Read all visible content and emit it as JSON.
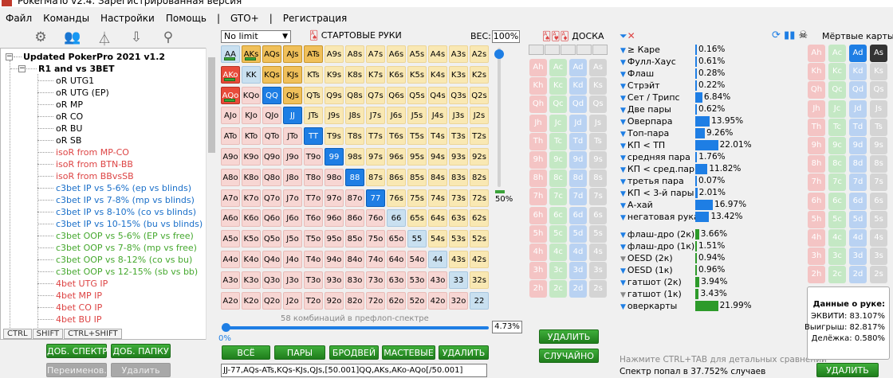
{
  "window": {
    "title": "PokerMaTo v2.4. Зарегистрированная версия"
  },
  "menu": [
    "Файл",
    "Команды",
    "Настройки",
    "Помощь",
    "|",
    "GTO+",
    "|",
    "Регистрация"
  ],
  "tree": {
    "root": "Updated PokerPro 2021 v1.2",
    "child": "R1 and vs 3BET",
    "items": [
      {
        "label": "oR UTG1",
        "color": "#000"
      },
      {
        "label": "oR UTG (EP)",
        "color": "#000"
      },
      {
        "label": "oR MP",
        "color": "#000"
      },
      {
        "label": "oR CO",
        "color": "#000"
      },
      {
        "label": "oR BU",
        "color": "#000"
      },
      {
        "label": "oR SB",
        "color": "#000"
      },
      {
        "label": "isoR from MP-CO",
        "color": "#d44"
      },
      {
        "label": "isoR from BTN-BB",
        "color": "#d44"
      },
      {
        "label": "isoR from BBvsSB",
        "color": "#d44"
      },
      {
        "label": "c3bet IP vs 5-6% (ep vs blinds)",
        "color": "#1a6fc9"
      },
      {
        "label": "c3bet IP vs 7-8% (mp vs blinds)",
        "color": "#1a6fc9"
      },
      {
        "label": "c3bet IP vs 8-10% (co vs blinds)",
        "color": "#1a6fc9"
      },
      {
        "label": "c3bet IP vs 10-15% (bu vs blinds)",
        "color": "#1a6fc9"
      },
      {
        "label": "c3bet OOP vs 5-6% (EP vs free)",
        "color": "#45a82e"
      },
      {
        "label": "c3bet OOP vs 7-8% (mp vs free)",
        "color": "#45a82e"
      },
      {
        "label": "c3bet OOP vs 8-12% (co vs bu)",
        "color": "#45a82e"
      },
      {
        "label": "c3bet OOP vs 12-15% (sb vs bb)",
        "color": "#45a82e"
      },
      {
        "label": "4bet UTG IP",
        "color": "#d44"
      },
      {
        "label": "4bet MP IP",
        "color": "#d44"
      },
      {
        "label": "4bet CO IP",
        "color": "#d44"
      },
      {
        "label": "4bet BU IP",
        "color": "#d44"
      }
    ]
  },
  "tabs": [
    "CTRL",
    "SHIFT",
    "CTRL+SHIFT"
  ],
  "buttons": {
    "add_spectrum": "ДОБ. СПЕКТР",
    "add_folder": "ДОБ. ПАПКУ",
    "rename": "Переименов.",
    "delete": "Удалить",
    "all": "ВСЁ",
    "pairs": "ПАРЫ",
    "broadway": "БРОДВЕЙ",
    "suited": "МАСТЕВЫЕ",
    "clear": "УДАЛИТЬ",
    "board_delete": "УДАЛИТЬ",
    "board_random": "СЛУЧАЙНО",
    "dead_delete": "УДАЛИТЬ"
  },
  "range": {
    "limit": "No limit",
    "title": "СТАРТОВЫЕ РУКИ",
    "weight_label": "ВЕС:",
    "weight": "100%",
    "slider_pct": "50%",
    "zero": "0%",
    "combos": "58 комбинаций в префлоп-спектре",
    "pct": "4.73%",
    "string": "JJ-77,AQs-ATs,KQs-KJs,QJs,[50.001]QQ,AKs,AKo-AQo[/50.001]"
  },
  "board": {
    "title": "ДОСКА"
  },
  "stats": {
    "rows1": [
      {
        "label": "≥ Каре",
        "val": "0.16%",
        "pct": 0.16
      },
      {
        "label": "Фулл-Хаус",
        "val": "0.61%",
        "pct": 0.61
      },
      {
        "label": "Флаш",
        "val": "0.28%",
        "pct": 0.28
      },
      {
        "label": "Стрэйт",
        "val": "0.22%",
        "pct": 0.22
      },
      {
        "label": "Сет / Трипс",
        "val": "6.84%",
        "pct": 6.84
      },
      {
        "label": "Две пары",
        "val": "0.62%",
        "pct": 0.62
      },
      {
        "label": "Оверпара",
        "val": "13.95%",
        "pct": 13.95
      },
      {
        "label": "Топ-пара",
        "val": "9.26%",
        "pct": 9.26
      },
      {
        "label": "КП < ТП",
        "val": "22.01%",
        "pct": 22.01
      },
      {
        "label": "средняя пара",
        "val": "1.76%",
        "pct": 1.76
      },
      {
        "label": "КП < сред.пары",
        "val": "11.82%",
        "pct": 11.82
      },
      {
        "label": "третья пара",
        "val": "0.07%",
        "pct": 0.07
      },
      {
        "label": "КП < 3-й пары",
        "val": "2.01%",
        "pct": 2.01
      },
      {
        "label": "А-хай",
        "val": "16.97%",
        "pct": 16.97
      },
      {
        "label": "негатовая рука",
        "val": "13.42%",
        "pct": 13.42
      }
    ],
    "rows2": [
      {
        "label": "флаш-дро (2к)",
        "val": "3.66%",
        "pct": 3.66
      },
      {
        "label": "флаш-дро (1к)",
        "val": "1.51%",
        "pct": 1.51
      },
      {
        "label": "OESD (2к)",
        "val": "0.94%",
        "pct": 0.94
      },
      {
        "label": "OESD (1к)",
        "val": "0.96%",
        "pct": 0.96
      },
      {
        "label": "гатшот (2к)",
        "val": "3.94%",
        "pct": 3.94
      },
      {
        "label": "гатшот (1к)",
        "val": "3.43%",
        "pct": 3.43
      },
      {
        "label": "оверкарты",
        "val": "21.99%",
        "pct": 21.99
      }
    ],
    "hint": "Нажмите CTRL+TAB для детальных сравнений",
    "spectrum": "Спектр попал в 37.752% случаев"
  },
  "dead": {
    "title": "Мёртвые карты"
  },
  "equity": {
    "title": "Данные о руке:",
    "eq": "ЭКВИТИ: 83.107%",
    "win": "Выигрыш: 82.817%",
    "tie": "Делёжка: 0.580%"
  },
  "colors": {
    "selected": "#1e7ee4",
    "green": "#3ba33a",
    "pair": "#c9e0f0",
    "suited": "#f9e8b3",
    "offsuit": "#f7d6d3"
  },
  "grid": {
    "ranks": [
      "A",
      "K",
      "Q",
      "J",
      "T",
      "9",
      "8",
      "7",
      "6",
      "5",
      "4",
      "3",
      "2"
    ],
    "selected": [
      "QQ",
      "JJ",
      "TT",
      "99",
      "88",
      "77"
    ],
    "full": [
      "AKs",
      "AQs",
      "AJs",
      "ATs",
      "KQs",
      "KJs",
      "QJs"
    ],
    "red": [
      "AKo",
      "AQo"
    ],
    "mixed": [
      "AA",
      "AKs",
      "AKo",
      "AQo"
    ]
  }
}
